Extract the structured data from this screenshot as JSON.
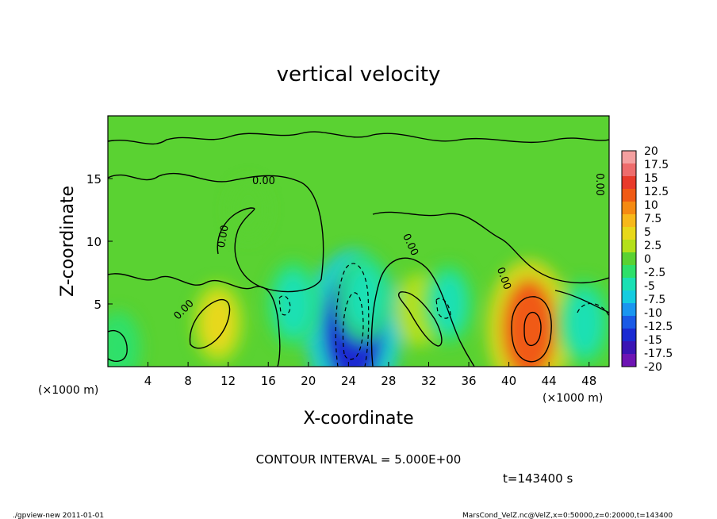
{
  "title": "vertical velocity",
  "footer_left": "./gpview-new   2011-01-01",
  "footer_right": "MarsCond_VelZ.nc@VelZ,x=0:50000,z=0:20000,t=143400",
  "time_label": "t=143400 s",
  "contour_interval_label": "CONTOUR INTERVAL = 5.000E+00",
  "chart_data": {
    "type": "heatmap",
    "title": "vertical velocity",
    "xlabel": "X-coordinate",
    "ylabel": "Z-coordinate",
    "x_unit_label": "(×1000 m)",
    "x_unit_label_right": "(×1000 m)",
    "xlim": [
      0,
      50
    ],
    "ylim": [
      0,
      20
    ],
    "x_ticks": [
      4,
      8,
      12,
      16,
      20,
      24,
      28,
      32,
      36,
      40,
      44,
      48
    ],
    "y_ticks": [
      5,
      10,
      15
    ],
    "contour_label": "0.00",
    "colorbar": {
      "labels": [
        "20",
        "17.5",
        "15",
        "12.5",
        "10",
        "7.5",
        "5",
        "2.5",
        "0",
        "-2.5",
        "-5",
        "-7.5",
        "-10",
        "-12.5",
        "-15",
        "-17.5",
        "-20"
      ],
      "colors": [
        "#f4a0a0",
        "#ee6c6c",
        "#e83a2a",
        "#f05a14",
        "#f58a12",
        "#f7b81a",
        "#e8d81a",
        "#b4e01a",
        "#5ad232",
        "#2ee06a",
        "#1ae0b4",
        "#14cce0",
        "#1a96f0",
        "#1a5ae6",
        "#1a2ad2",
        "#3a14b4",
        "#6e14b4"
      ]
    },
    "features": [
      {
        "x": 24.5,
        "z": 3.0,
        "value": -15
      },
      {
        "x": 42.0,
        "z": 3.0,
        "value": 12
      },
      {
        "x": 11.0,
        "z": 3.5,
        "value": 4
      },
      {
        "x": 31.0,
        "z": 4.5,
        "value": 3
      },
      {
        "x": 25.5,
        "z": 5.5,
        "value": -5
      },
      {
        "x": 18.5,
        "z": 5.0,
        "value": -5
      },
      {
        "x": 47.5,
        "z": 3.5,
        "value": -5
      },
      {
        "x": 34.0,
        "z": 5.0,
        "value": -4
      },
      {
        "x": 14.0,
        "z": 12.5,
        "value": 1
      },
      {
        "x": 1.0,
        "z": 1.5,
        "value": -3
      }
    ]
  }
}
